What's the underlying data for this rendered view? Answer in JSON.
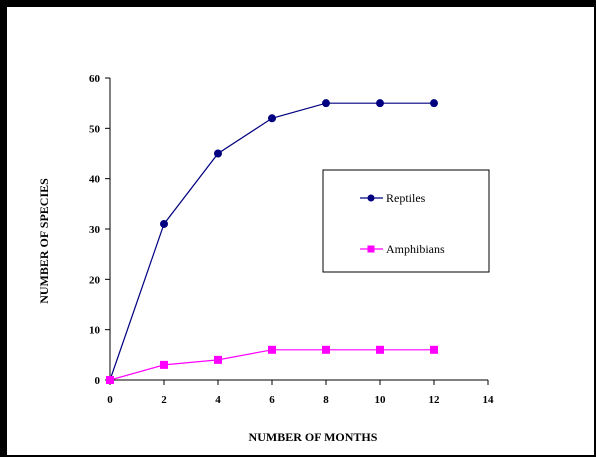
{
  "chart_data": {
    "type": "line",
    "xlabel": "NUMBER OF MONTHS",
    "ylabel": "NUMBER OF SPECIES",
    "xlim": [
      0,
      14
    ],
    "ylim": [
      0,
      60
    ],
    "x_ticks": [
      0,
      2,
      4,
      6,
      8,
      10,
      12,
      14
    ],
    "y_ticks": [
      0,
      10,
      20,
      30,
      40,
      50,
      60
    ],
    "grid": false,
    "legend_position": "right",
    "series": [
      {
        "name": "Reptiles",
        "color": "#000080",
        "marker": "circle",
        "x": [
          0,
          2,
          4,
          6,
          8,
          10,
          12
        ],
        "values": [
          0,
          31,
          45,
          52,
          55,
          55,
          55
        ]
      },
      {
        "name": "Amphibians",
        "color": "#ff00ff",
        "marker": "square",
        "x": [
          0,
          2,
          4,
          6,
          8,
          10,
          12
        ],
        "values": [
          0,
          3,
          4,
          6,
          6,
          6,
          6
        ]
      }
    ]
  }
}
